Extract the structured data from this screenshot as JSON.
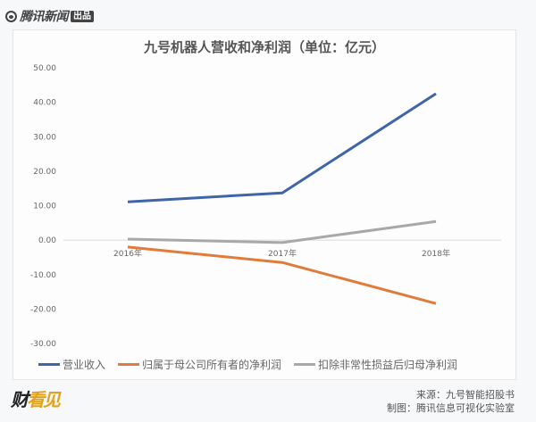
{
  "header": {
    "brand_name": "腾讯新闻",
    "brand_badge": "出品"
  },
  "chart_data": {
    "type": "line",
    "title": "九号机器人营收和净利润（单位：亿元）",
    "xlabel": "",
    "ylabel": "",
    "categories": [
      "2016年",
      "2017年",
      "2018年"
    ],
    "series": [
      {
        "name": "营业收入",
        "color": "#3f64a8",
        "values": [
          11.1,
          13.7,
          42.5
        ]
      },
      {
        "name": "归属于母公司所有者的净利润",
        "color": "#e07b3a",
        "values": [
          -2.0,
          -6.5,
          -18.4
        ]
      },
      {
        "name": "扣除非常性损益后归母净利润",
        "color": "#a8a8a8",
        "values": [
          0.3,
          -0.7,
          5.4
        ]
      }
    ],
    "yticks": [
      "50.00",
      "40.00",
      "30.00",
      "20.00",
      "10.00",
      "0.00",
      "-10.00",
      "-20.00",
      "-30.00"
    ],
    "ylim": [
      -30,
      50
    ],
    "grid": false,
    "zero_line": true,
    "legend_position": "bottom"
  },
  "footer": {
    "logo_text_a": "财",
    "logo_text_b": "看见",
    "source": "来源：九号智能招股书",
    "made_by": "制图：腾讯信息可视化实验室"
  }
}
